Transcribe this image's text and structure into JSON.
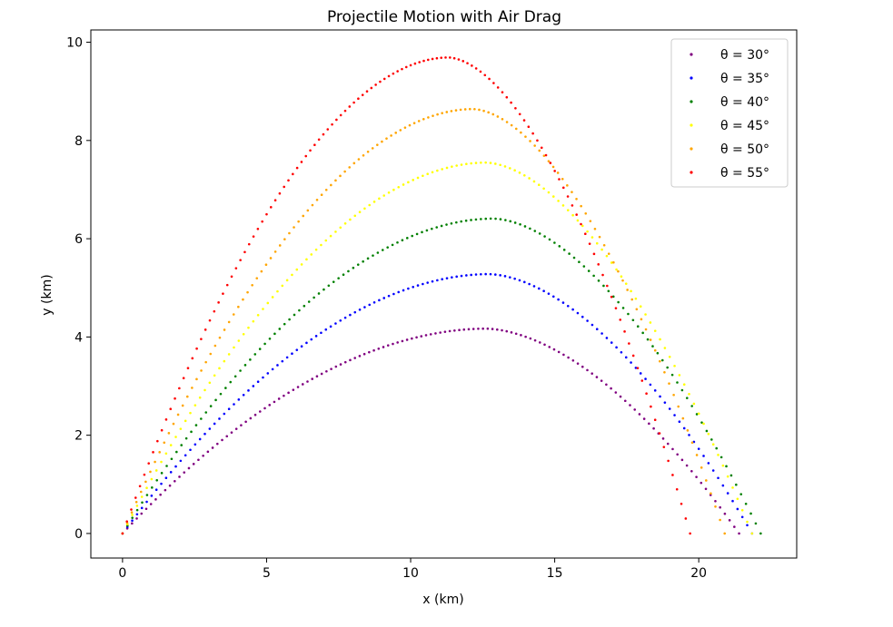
{
  "chart_data": {
    "type": "scatter",
    "title": "Projectile Motion with Air Drag",
    "xlabel": "x (km)",
    "ylabel": "y (km)",
    "xlim": [
      -1.1,
      23.4
    ],
    "ylim": [
      -0.5,
      10.25
    ],
    "xticks": [
      0,
      5,
      10,
      15,
      20
    ],
    "yticks": [
      0,
      2,
      4,
      6,
      8,
      10
    ],
    "grid": false,
    "legend_position": "top-right",
    "series": [
      {
        "name": "θ = 30°",
        "color": "#800080",
        "range": 21.4,
        "apex_x": 12.6,
        "apex_y": 4.17
      },
      {
        "name": "θ = 35°",
        "color": "#0000ff",
        "range": 21.85,
        "apex_x": 12.7,
        "apex_y": 5.28
      },
      {
        "name": "θ = 40°",
        "color": "#008000",
        "range": 22.15,
        "apex_x": 12.85,
        "apex_y": 6.41
      },
      {
        "name": "θ = 45°",
        "color": "#ffff00",
        "range": 21.85,
        "apex_x": 12.6,
        "apex_y": 7.55
      },
      {
        "name": "θ = 50°",
        "color": "#ffa500",
        "range": 20.9,
        "apex_x": 12.15,
        "apex_y": 8.64
      },
      {
        "name": "θ = 55°",
        "color": "#ff0000",
        "range": 19.7,
        "apex_x": 11.3,
        "apex_y": 9.69
      }
    ]
  }
}
